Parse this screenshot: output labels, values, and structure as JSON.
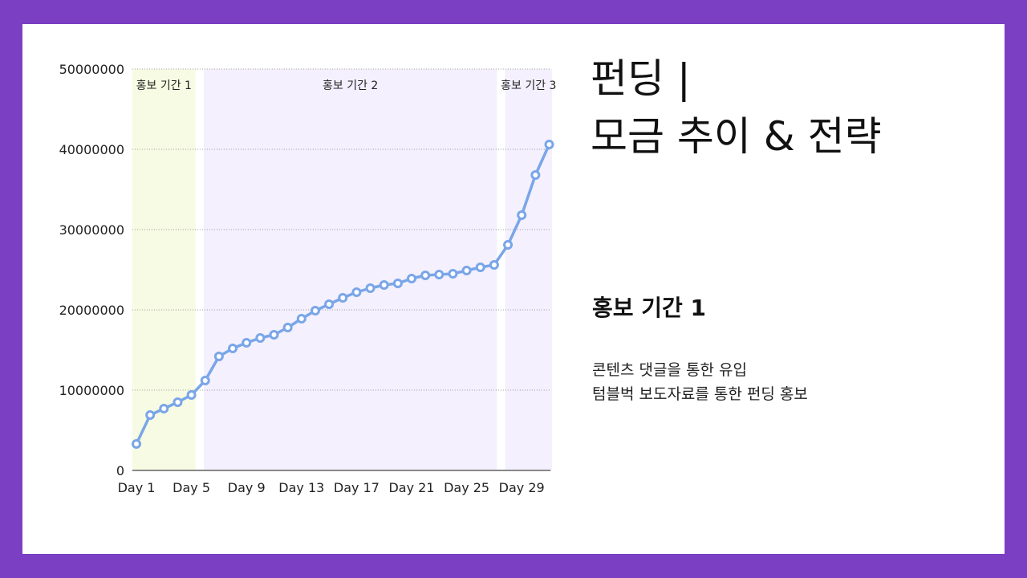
{
  "slide": {
    "title": "펀딩 |\n모금 추이 & 전략",
    "section_heading": "홍보 기간 1",
    "bullets": [
      "콘텐츠 댓글을 통한 유입",
      "텀블벅 보도자료를 통한 펀딩 홍보"
    ],
    "colors": {
      "background": "#7b3fc4",
      "card": "#ffffff"
    }
  },
  "chart_data": {
    "type": "line",
    "title": "",
    "xlabel": "",
    "ylabel": "",
    "x": [
      1,
      2,
      3,
      4,
      5,
      6,
      7,
      8,
      9,
      10,
      11,
      12,
      13,
      14,
      15,
      16,
      17,
      18,
      19,
      20,
      21,
      22,
      23,
      24,
      25,
      26,
      27,
      28,
      29,
      30,
      31
    ],
    "x_tick_labels": [
      "Day 1",
      "Day 5",
      "Day 9",
      "Day 13",
      "Day 17",
      "Day 21",
      "Day 25",
      "Day 29"
    ],
    "x_tick_days": [
      1,
      5,
      9,
      13,
      17,
      21,
      25,
      29
    ],
    "series": [
      {
        "values": [
          3300000,
          6900000,
          7700000,
          8500000,
          9400000,
          11200000,
          14200000,
          15200000,
          15900000,
          16500000,
          16900000,
          17800000,
          18900000,
          19900000,
          20700000,
          21500000,
          22200000,
          22700000,
          23100000,
          23300000,
          23900000,
          24300000,
          24400000,
          24500000,
          24900000,
          25300000,
          25600000,
          28100000,
          31800000,
          36800000,
          40600000
        ],
        "color": "#7aa6e8",
        "marker": "hollow-circle"
      }
    ],
    "ylim": [
      0,
      50000000
    ],
    "y_ticks": [
      0,
      10000000,
      20000000,
      30000000,
      40000000,
      50000000
    ],
    "y_tick_labels": [
      "0",
      "10000000",
      "20000000",
      "30000000",
      "40000000",
      "50000000"
    ],
    "grid": "horizontal-dotted",
    "bands": [
      {
        "label": "홍보 기간 1",
        "from_day": 0.7,
        "to_day": 5.3,
        "color": "#f7fbe3"
      },
      {
        "label": "홍보 기간 2",
        "from_day": 5.9,
        "to_day": 27.2,
        "color": "#f4f0fd"
      },
      {
        "label": "홍보 기간 3",
        "from_day": 27.8,
        "to_day": 31.2,
        "color": "#f4f0fd"
      }
    ]
  }
}
